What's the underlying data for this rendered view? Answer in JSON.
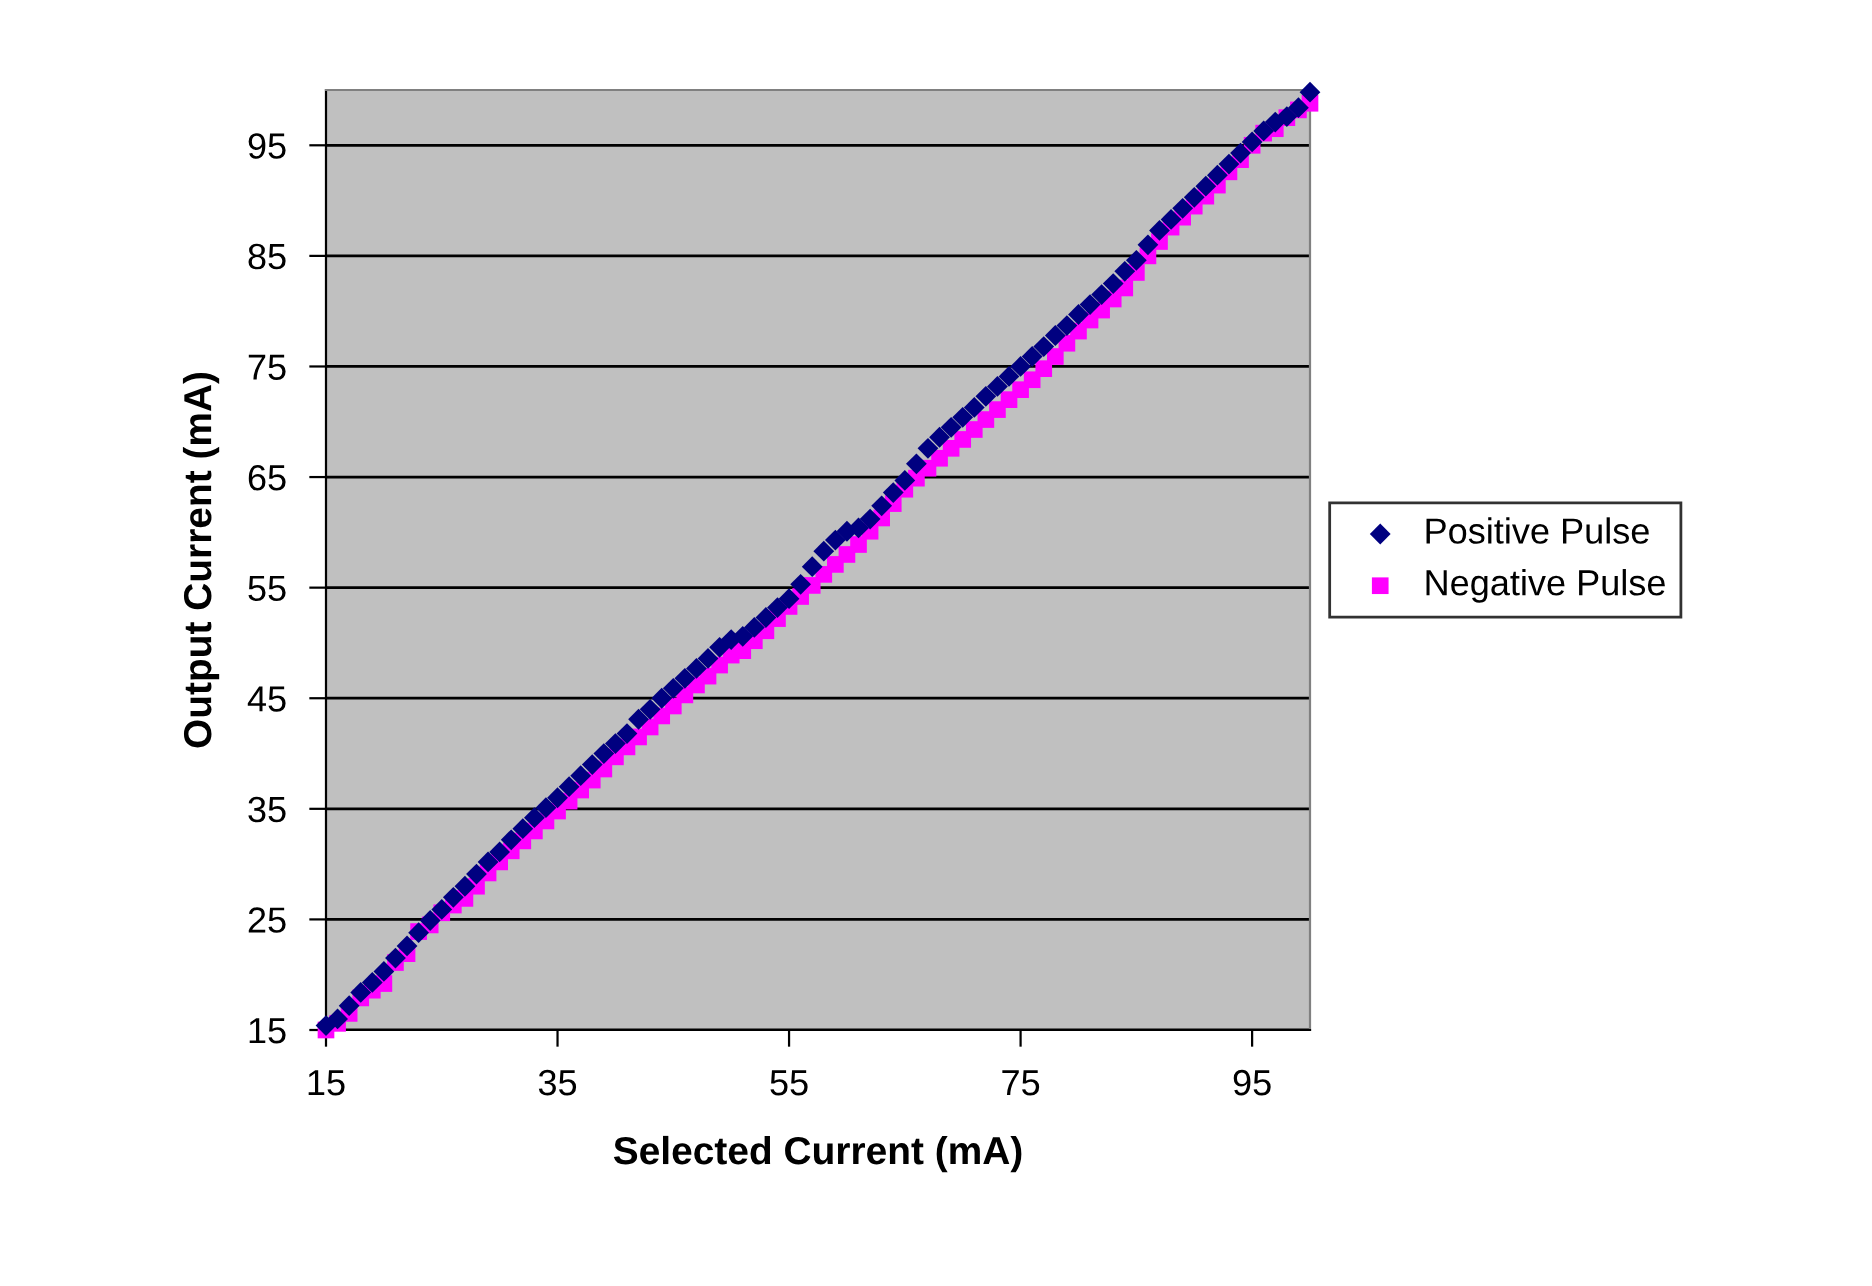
{
  "chart_data": {
    "type": "scatter",
    "xlabel": "Selected Current (mA)",
    "ylabel": "Output Current (mA)",
    "x": [
      15,
      16,
      17,
      18,
      19,
      20,
      21,
      22,
      23,
      24,
      25,
      26,
      27,
      28,
      29,
      30,
      31,
      32,
      33,
      34,
      35,
      36,
      37,
      38,
      39,
      40,
      41,
      42,
      43,
      44,
      45,
      46,
      47,
      48,
      49,
      50,
      51,
      52,
      53,
      54,
      55,
      56,
      57,
      58,
      59,
      60,
      61,
      62,
      63,
      64,
      65,
      66,
      67,
      68,
      69,
      70,
      71,
      72,
      73,
      74,
      75,
      76,
      77,
      78,
      79,
      80,
      81,
      82,
      83,
      84,
      85,
      86,
      87,
      88,
      89,
      90,
      91,
      92,
      93,
      94,
      95,
      96,
      97,
      98,
      99,
      100
    ],
    "series": [
      {
        "name": "Positive Pulse",
        "color": "#000080",
        "marker": "diamond",
        "values": [
          15.4,
          16,
          17.2,
          18.4,
          19.3,
          20.3,
          21.5,
          22.6,
          23.8,
          24.9,
          25.9,
          27,
          28,
          29.1,
          30.2,
          31.1,
          32.2,
          33.2,
          34.2,
          35.1,
          36,
          37,
          38,
          39,
          40,
          40.9,
          41.8,
          43.1,
          44,
          45,
          45.9,
          46.8,
          47.7,
          48.6,
          49.6,
          50.3,
          50.6,
          51.4,
          52.3,
          53.2,
          54,
          55.3,
          56.9,
          58.3,
          59.3,
          60.1,
          60.4,
          61.2,
          62.4,
          63.6,
          64.7,
          66.2,
          67.6,
          68.6,
          69.5,
          70.4,
          71.3,
          72.3,
          73.2,
          74.1,
          75,
          75.9,
          76.8,
          77.8,
          78.7,
          79.7,
          80.6,
          81.5,
          82.5,
          83.6,
          84.6,
          86,
          87.3,
          88.3,
          89.3,
          90.3,
          91.3,
          92.3,
          93.3,
          94.3,
          95.3,
          96.3,
          97.1,
          97.6,
          98.4,
          99.8
        ]
      },
      {
        "name": "Negative Pulse",
        "color": "#ff00ff",
        "marker": "square",
        "values": [
          15,
          15.6,
          16.5,
          17.9,
          18.6,
          19.2,
          21.1,
          21.9,
          23.9,
          24.5,
          25.6,
          26.3,
          26.9,
          28,
          29.2,
          30.2,
          31.2,
          32.1,
          33,
          33.9,
          34.8,
          35.7,
          36.7,
          37.6,
          38.6,
          39.7,
          40.6,
          41.5,
          42.4,
          43.4,
          44.3,
          45.3,
          46.2,
          47,
          48,
          48.9,
          49.3,
          50.2,
          51.1,
          52.2,
          53.3,
          54.2,
          55.2,
          56.2,
          57.1,
          58,
          58.9,
          60.1,
          61.3,
          62.6,
          63.9,
          64.9,
          65.8,
          66.7,
          67.6,
          68.4,
          69.3,
          70.2,
          71.1,
          72,
          72.9,
          73.8,
          74.8,
          75.9,
          77.1,
          78.2,
          79.2,
          80.1,
          81.1,
          82.1,
          83.5,
          85,
          86.3,
          87.6,
          88.5,
          89.5,
          90.4,
          91.4,
          92.6,
          93.7,
          95,
          96.1,
          96.5,
          97.5,
          98.2,
          98.8
        ]
      }
    ],
    "xlim": [
      15,
      100
    ],
    "ylim": [
      15,
      100
    ],
    "xticks": [
      15,
      35,
      55,
      75,
      95
    ],
    "yticks": [
      15,
      25,
      35,
      45,
      55,
      65,
      75,
      85,
      95
    ],
    "grid": "y",
    "legend": "right"
  }
}
